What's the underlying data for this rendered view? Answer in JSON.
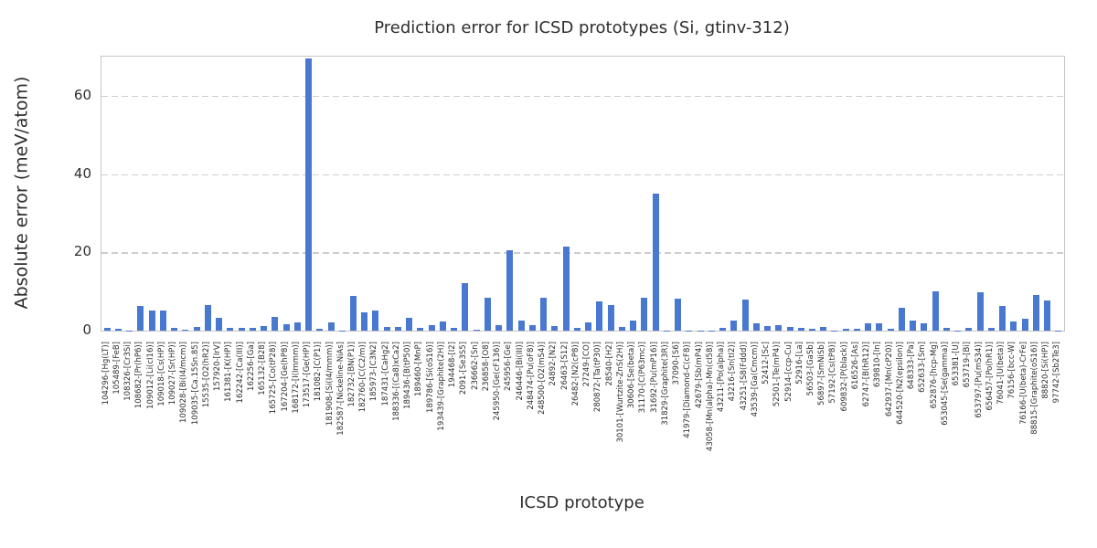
{
  "chart_data": {
    "type": "bar",
    "title": "Prediction error for ICSD prototypes (Si, gtinv-312)",
    "xlabel": "ICSD prototype",
    "ylabel": "Absolute error (meV/atom)",
    "ylim": [
      0,
      70
    ],
    "yticks": [
      0,
      20,
      40,
      60
    ],
    "grid": "horizontal-dashed",
    "legend": "none",
    "bar_color": "#4878CF",
    "grid_color": "#cdcdcd",
    "axis_color": "#c6c6c6",
    "text_color": "#2e2e2e",
    "categories": [
      "104296-[Hg(LT)]",
      "105489-[FeB]",
      "108326-[Cr3Si]",
      "108682-[Pr(hP6)]",
      "109012-[Li(cI16)]",
      "109018-[Cs(HP)]",
      "109027-[Sr(HP)]",
      "109028-[Bi(I4/mcm)]",
      "109035-[Ca.15Sn.85]",
      "15535-[O2(hR2)]",
      "157920-[IrV]",
      "161381-[K(HP)]",
      "162242-[Ca(III)]",
      "162256-[Ga]",
      "165132-[B28]",
      "165725-[Co(tP28)]",
      "167204-[Ge(hP8)]",
      "168172-[I(Immm)]",
      "173517-[Ge(HP)]",
      "181082-[C(P1)]",
      "181908-[Si(I4/mmm)]",
      "182587-[Nickeline-NiAs]",
      "182732-[BN(P1)]",
      "182760-[C(C2/m)]",
      "185973-[C3N2]",
      "187431-[CaHg2]",
      "188336-[(Ca8)xCa2]",
      "189436-[B(tP50)]",
      "189460-[MnP]",
      "189786-[Si(oS16)]",
      "193439-[Graphite(2H)]",
      "194468-[I2]",
      "2091-[Se3S5]",
      "236662-[Sn]",
      "236858-[O8]",
      "245950-[Ge(cF136)]",
      "245956-[Ge]",
      "246446-[Bi(III)]",
      "248474-[Pu(oF8)]",
      "248500-[O2(mS4)]",
      "24892-[N2]",
      "26463-[S12]",
      "26482-[N2(cP8)]",
      "27249-[CO]",
      "280872-[Ta(tP30)]",
      "28540-[H2]",
      "30101-[Wurtzite-ZnS(2H)]",
      "30606-[Se(beta)]",
      "31170-[C(P63mc)]",
      "31692-[Pu(mP16)]",
      "31829-[Graphite(3R)]",
      "37090-[S6]",
      "41979-[Diamond-C(cF8)]",
      "42679-[Sb(mP4)]",
      "43058-[Mn(alpha)-Mn(cI58)]",
      "43211-[Po(alpha)]",
      "43216-[Sn(tI2)]",
      "43251-[S8(Fddd)]",
      "43539-[Ga(Cmcm)]",
      "52412-[Sc]",
      "52501-[Te(mP4)]",
      "52914-[ccp-Cu]",
      "52916-[La]",
      "56503-[GaSb]",
      "56897-[SmNiSb]",
      "57192-[Cs(tP8)]",
      "609832-[P(black)]",
      "616526-[As]",
      "62747-[B(hR12)]",
      "639810-[In]",
      "642937-[Mn(cP20)]",
      "644520-[N2(epsilon)]",
      "648333-[Pa]",
      "652633-[Sm]",
      "652876-[hcp-Mg]",
      "653045-[Se(gamma)]",
      "653381-[U]",
      "653719-[Bi]",
      "653797-[Pu(mS34)]",
      "656457-[Po(hR1)]",
      "76041-[U(beta)]",
      "76156-[bcc-W]",
      "76166-[U(beta)-CrFe]",
      "88815-[Graphite(oS16)]",
      "88820-[Si(HP)]",
      "97742-[Sb2Te3]"
    ],
    "values": [
      0.8,
      0.4,
      0.1,
      6.4,
      5.1,
      5.1,
      0.8,
      0.2,
      0.9,
      6.6,
      3.2,
      0.7,
      0.6,
      0.8,
      1.2,
      3.4,
      1.6,
      2.0,
      69.5,
      0.4,
      2.2,
      0.1,
      8.8,
      4.6,
      5.1,
      0.9,
      1.0,
      3.3,
      0.6,
      1.5,
      2.3,
      0.8,
      12.2,
      0.3,
      8.5,
      1.4,
      20.5,
      2.6,
      1.3,
      8.4,
      1.2,
      21.5,
      0.6,
      2.1,
      7.5,
      6.5,
      1.0,
      2.5,
      8.4,
      35.0,
      0.1,
      8.2,
      0.1,
      0.1,
      0.1,
      0.6,
      2.5,
      8.0,
      1.8,
      1.2,
      1.5,
      1.0,
      0.8,
      0.4,
      0.9,
      0.1,
      0.5,
      0.4,
      1.9,
      1.9,
      0.5,
      5.8,
      2.6,
      1.9,
      10.0,
      0.6,
      0.1,
      0.8,
      9.8,
      0.6,
      6.4,
      2.3,
      3.0,
      9.0,
      7.7,
      0.1
    ]
  }
}
